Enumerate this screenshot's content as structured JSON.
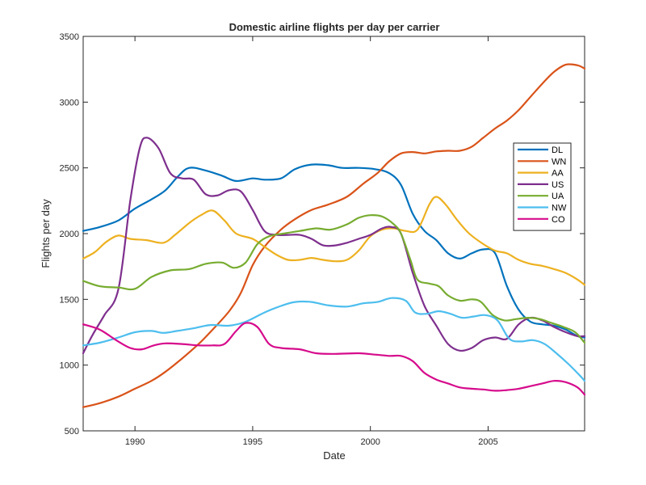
{
  "chart_data": {
    "type": "line",
    "title": "Domestic airline flights per day per carrier",
    "xlabel": "Date",
    "ylabel": "Flights per day",
    "xlim": [
      1987.8,
      2009.1
    ],
    "ylim": [
      500,
      3500
    ],
    "xticks": [
      1990,
      1995,
      2000,
      2005
    ],
    "yticks": [
      500,
      1000,
      1500,
      2000,
      2500,
      3000,
      3500
    ],
    "grid": false,
    "legend_position": "right",
    "series": [
      {
        "name": "DL",
        "color": "#0072bd",
        "x": [
          1987.8,
          1988.5,
          1989.3,
          1990,
          1990.7,
          1991.3,
          1991.8,
          1992.3,
          1993,
          1993.7,
          1994.3,
          1995,
          1995.5,
          1996.2,
          1996.8,
          1997.5,
          1998.2,
          1998.8,
          1999.5,
          2000.2,
          2000.8,
          2001.3,
          2001.8,
          2002.3,
          2002.8,
          2003.3,
          2003.8,
          2004.3,
          2004.8,
          2005.3,
          2005.8,
          2006.3,
          2006.8,
          2007.3,
          2007.8,
          2008.3,
          2008.8,
          2009.1
        ],
        "y": [
          2020,
          2050,
          2100,
          2190,
          2260,
          2330,
          2430,
          2500,
          2480,
          2440,
          2400,
          2420,
          2410,
          2420,
          2490,
          2525,
          2520,
          2500,
          2500,
          2490,
          2460,
          2370,
          2150,
          2020,
          1950,
          1850,
          1810,
          1850,
          1880,
          1850,
          1600,
          1420,
          1330,
          1310,
          1300,
          1270,
          1220,
          1210
        ]
      },
      {
        "name": "WN",
        "color": "#d95319",
        "x": [
          1987.8,
          1988.5,
          1989.3,
          1990,
          1990.7,
          1991.3,
          1992,
          1992.7,
          1993.3,
          1994,
          1994.5,
          1995,
          1995.5,
          1996.2,
          1996.8,
          1997.5,
          1998.2,
          1999,
          1999.7,
          2000.3,
          2000.8,
          2001.3,
          2001.8,
          2002.3,
          2002.8,
          2003.3,
          2003.8,
          2004.3,
          2004.8,
          2005.3,
          2005.8,
          2006.3,
          2006.8,
          2007.3,
          2007.8,
          2008.3,
          2008.8,
          2009.1
        ],
        "y": [
          680,
          710,
          760,
          820,
          880,
          950,
          1050,
          1160,
          1270,
          1410,
          1550,
          1760,
          1900,
          2030,
          2110,
          2180,
          2220,
          2280,
          2380,
          2460,
          2550,
          2610,
          2620,
          2610,
          2625,
          2630,
          2630,
          2660,
          2730,
          2800,
          2860,
          2940,
          3040,
          3140,
          3230,
          3285,
          3280,
          3255
        ]
      },
      {
        "name": "AA",
        "color": "#edb120",
        "x": [
          1987.8,
          1988.3,
          1988.8,
          1989.3,
          1989.8,
          1990.5,
          1991.2,
          1991.7,
          1992.3,
          1992.8,
          1993.3,
          1993.8,
          1994.3,
          1995,
          1995.5,
          1996,
          1996.5,
          1997,
          1997.5,
          1998,
          1998.5,
          1999,
          1999.5,
          2000,
          2000.5,
          2001,
          2001.5,
          2002,
          2002.5,
          2002.8,
          2003.2,
          2003.7,
          2004.2,
          2004.8,
          2005.3,
          2005.8,
          2006.3,
          2006.8,
          2007.3,
          2007.8,
          2008.3,
          2008.8,
          2009.1
        ],
        "y": [
          1810,
          1860,
          1940,
          1985,
          1960,
          1950,
          1930,
          1990,
          2080,
          2140,
          2175,
          2100,
          2000,
          1960,
          1900,
          1840,
          1800,
          1800,
          1815,
          1800,
          1790,
          1800,
          1870,
          1980,
          2030,
          2040,
          2020,
          2030,
          2220,
          2280,
          2220,
          2100,
          2000,
          1920,
          1870,
          1850,
          1800,
          1770,
          1755,
          1730,
          1700,
          1650,
          1610
        ]
      },
      {
        "name": "US",
        "color": "#7e2f8e",
        "x": [
          1987.8,
          1988.2,
          1988.7,
          1989.3,
          1989.8,
          1990.2,
          1990.5,
          1991,
          1991.5,
          1992,
          1992.5,
          1993,
          1993.5,
          1994,
          1994.5,
          1995,
          1995.5,
          1996,
          1996.5,
          1997,
          1997.5,
          1998,
          1998.5,
          1999,
          1999.5,
          2000,
          2000.5,
          2000.9,
          2001.3,
          2001.8,
          2002.3,
          2002.8,
          2003.3,
          2003.8,
          2004.3,
          2004.8,
          2005.3,
          2005.8,
          2006.3,
          2006.8,
          2007.3,
          2007.8,
          2008.3,
          2008.8,
          2009.1
        ],
        "y": [
          1090,
          1230,
          1380,
          1580,
          2250,
          2650,
          2730,
          2650,
          2460,
          2420,
          2410,
          2300,
          2290,
          2330,
          2320,
          2180,
          2020,
          1990,
          1990,
          1990,
          1960,
          1910,
          1910,
          1930,
          1960,
          1990,
          2040,
          2050,
          2000,
          1700,
          1450,
          1300,
          1160,
          1110,
          1130,
          1190,
          1210,
          1200,
          1310,
          1360,
          1340,
          1290,
          1250,
          1220,
          1220
        ]
      },
      {
        "name": "UA",
        "color": "#77ac30",
        "x": [
          1987.8,
          1988.5,
          1989.3,
          1990,
          1990.7,
          1991.5,
          1992.3,
          1993,
          1993.7,
          1994.2,
          1994.7,
          1995.2,
          1995.7,
          1996.3,
          1997,
          1997.7,
          1998.3,
          1999,
          1999.5,
          2000,
          2000.5,
          2001,
          2001.3,
          2001.7,
          2002,
          2002.5,
          2002.9,
          2003.3,
          2003.8,
          2004.3,
          2004.7,
          2005.2,
          2005.7,
          2006.2,
          2006.7,
          2007.2,
          2007.7,
          2008.2,
          2008.7,
          2009.1
        ],
        "y": [
          1640,
          1600,
          1590,
          1580,
          1670,
          1720,
          1730,
          1770,
          1780,
          1740,
          1780,
          1920,
          1980,
          2000,
          2020,
          2040,
          2030,
          2070,
          2120,
          2140,
          2130,
          2070,
          2000,
          1800,
          1650,
          1620,
          1600,
          1530,
          1490,
          1500,
          1480,
          1380,
          1340,
          1350,
          1360,
          1350,
          1320,
          1290,
          1250,
          1170
        ]
      },
      {
        "name": "NW",
        "color": "#4dbeee",
        "x": [
          1987.8,
          1988.5,
          1989.3,
          1990,
          1990.7,
          1991.2,
          1991.8,
          1992.5,
          1993.2,
          1994,
          1994.7,
          1995.5,
          1996.2,
          1996.8,
          1997.5,
          1998.2,
          1999,
          1999.7,
          2000.3,
          2000.9,
          2001.5,
          2001.9,
          2002.4,
          2002.9,
          2003.4,
          2003.9,
          2004.4,
          2004.9,
          2005.4,
          2005.9,
          2006.4,
          2006.9,
          2007.4,
          2007.9,
          2008.4,
          2008.9,
          2009.1
        ],
        "y": [
          1150,
          1170,
          1210,
          1250,
          1260,
          1245,
          1260,
          1280,
          1305,
          1300,
          1330,
          1400,
          1450,
          1480,
          1480,
          1455,
          1445,
          1470,
          1480,
          1510,
          1490,
          1400,
          1390,
          1410,
          1390,
          1360,
          1370,
          1380,
          1340,
          1200,
          1180,
          1190,
          1160,
          1090,
          1010,
          920,
          880
        ]
      },
      {
        "name": "CO",
        "color": "#d60b8c",
        "x": [
          1987.8,
          1988.5,
          1989.2,
          1989.8,
          1990.3,
          1990.8,
          1991.3,
          1992,
          1992.7,
          1993.3,
          1993.8,
          1994.3,
          1994.7,
          1995.2,
          1995.7,
          1996.2,
          1997,
          1997.7,
          1998.5,
          1999.5,
          2000.2,
          2000.8,
          2001.3,
          2001.8,
          2002.3,
          2002.8,
          2003.3,
          2003.8,
          2004.3,
          2004.8,
          2005.3,
          2005.8,
          2006.3,
          2006.8,
          2007.3,
          2007.8,
          2008.3,
          2008.8,
          2009.1
        ],
        "y": [
          1310,
          1270,
          1190,
          1130,
          1120,
          1150,
          1165,
          1160,
          1150,
          1150,
          1160,
          1260,
          1320,
          1290,
          1160,
          1130,
          1120,
          1090,
          1085,
          1090,
          1080,
          1070,
          1070,
          1030,
          940,
          890,
          860,
          830,
          820,
          815,
          805,
          810,
          820,
          840,
          860,
          880,
          870,
          830,
          775
        ]
      }
    ]
  }
}
